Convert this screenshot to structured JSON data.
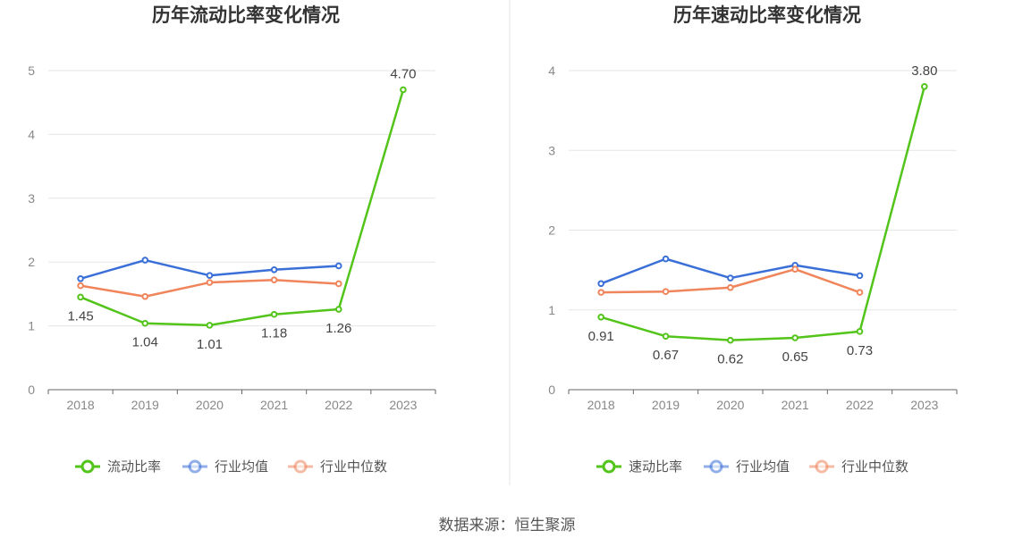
{
  "source": "数据来源：恒生聚源",
  "chart_data": [
    {
      "type": "line",
      "title": "历年流动比率变化情况",
      "categories": [
        "2018",
        "2019",
        "2020",
        "2021",
        "2022",
        "2023"
      ],
      "ylim": [
        0,
        5
      ],
      "yticks": [
        0,
        1,
        2,
        3,
        4,
        5
      ],
      "grid": true,
      "legend_position": "bottom",
      "series": [
        {
          "name": "流动比率",
          "color": "#52c41a",
          "values": [
            1.45,
            1.04,
            1.01,
            1.18,
            1.26,
            4.7
          ],
          "labels": [
            "1.45",
            "1.04",
            "1.01",
            "1.18",
            "1.26",
            "4.70"
          ]
        },
        {
          "name": "行业均值",
          "color": "#3a6fd8",
          "values": [
            1.74,
            2.03,
            1.79,
            1.88,
            1.94,
            null
          ]
        },
        {
          "name": "行业中位数",
          "color": "#f0845b",
          "values": [
            1.63,
            1.46,
            1.68,
            1.72,
            1.66,
            null
          ]
        }
      ]
    },
    {
      "type": "line",
      "title": "历年速动比率变化情况",
      "categories": [
        "2018",
        "2019",
        "2020",
        "2021",
        "2022",
        "2023"
      ],
      "ylim": [
        0,
        4
      ],
      "yticks": [
        0,
        1,
        2,
        3,
        4
      ],
      "grid": true,
      "legend_position": "bottom",
      "series": [
        {
          "name": "速动比率",
          "color": "#52c41a",
          "values": [
            0.91,
            0.67,
            0.62,
            0.65,
            0.73,
            3.8
          ],
          "labels": [
            "0.91",
            "0.67",
            "0.62",
            "0.65",
            "0.73",
            "3.80"
          ]
        },
        {
          "name": "行业均值",
          "color": "#3a6fd8",
          "values": [
            1.33,
            1.64,
            1.4,
            1.56,
            1.43,
            null
          ]
        },
        {
          "name": "行业中位数",
          "color": "#f0845b",
          "values": [
            1.22,
            1.23,
            1.28,
            1.51,
            1.22,
            null
          ]
        }
      ]
    }
  ]
}
